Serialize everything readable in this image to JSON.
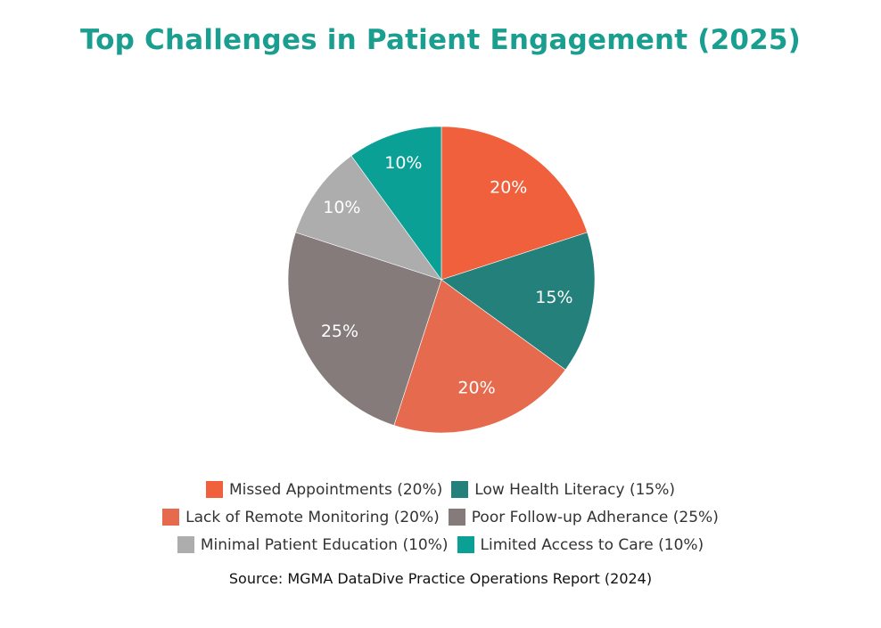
{
  "title": "Top Challenges in Patient Engagement (2025)",
  "source": "Source: MGMA DataDive Practice Operations Report (2024)",
  "colors": {
    "title": "#1a9e8f",
    "label_text": "#ffffff",
    "legend_text": "#333333"
  },
  "chart_data": {
    "type": "pie",
    "title": "Top Challenges in Patient Engagement (2025)",
    "start_angle_deg": 0,
    "direction": "clockwise",
    "slices": [
      {
        "label": "Missed Appointments",
        "value": 20,
        "display": "20%",
        "legend": "Missed Appointments (20%)",
        "color": "#f0603c"
      },
      {
        "label": "Low Health Literacy",
        "value": 15,
        "display": "15%",
        "legend": "Low Health Literacy (15%)",
        "color": "#23807a"
      },
      {
        "label": "Lack of Remote Monitoring",
        "value": 20,
        "display": "20%",
        "legend": "Lack of Remote Monitoring (20%)",
        "color": "#e66b4e"
      },
      {
        "label": "Poor Follow-up Adherance",
        "value": 25,
        "display": "25%",
        "legend": "Poor Follow-up Adherance (25%)",
        "color": "#857b7b"
      },
      {
        "label": "Minimal Patient Education",
        "value": 10,
        "display": "10%",
        "legend": "Minimal Patient Education (10%)",
        "color": "#adadad"
      },
      {
        "label": "Limited Access to Care",
        "value": 10,
        "display": "10%",
        "legend": "Limited Access to Care (10%)",
        "color": "#0aa096"
      }
    ],
    "legend_position": "bottom"
  }
}
